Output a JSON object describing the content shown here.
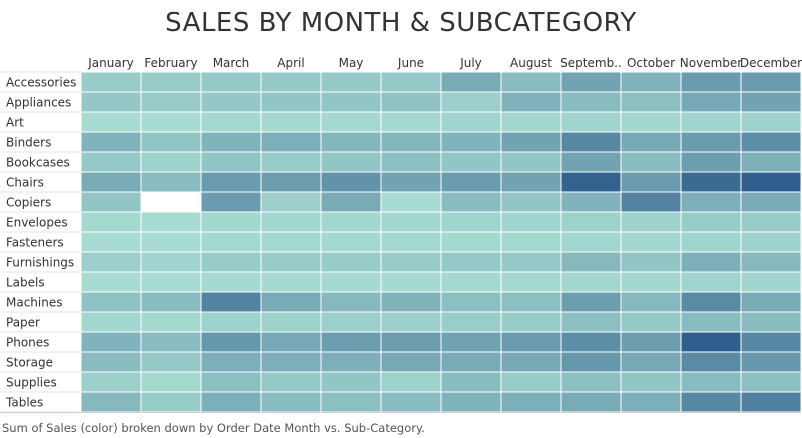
{
  "chart_data": {
    "type": "heatmap",
    "title": "SALES BY MONTH & SUBCATEGORY",
    "caption": "Sum of Sales (color) broken down by Order Date Month vs. Sub-Category.",
    "x_categories": [
      "January",
      "February",
      "March",
      "April",
      "May",
      "June",
      "July",
      "August",
      "Septemb..",
      "October",
      "November",
      "December"
    ],
    "y_categories": [
      "Accessories",
      "Appliances",
      "Art",
      "Binders",
      "Bookcases",
      "Chairs",
      "Copiers",
      "Envelopes",
      "Fasteners",
      "Furnishings",
      "Labels",
      "Machines",
      "Paper",
      "Phones",
      "Storage",
      "Supplies",
      "Tables"
    ],
    "color_scale": {
      "low": "#ffffff",
      "mid": "#a8dcd2",
      "high": "#2b5a8a"
    },
    "values": [
      [
        0.3,
        0.3,
        0.32,
        0.32,
        0.32,
        0.32,
        0.5,
        0.4,
        0.55,
        0.45,
        0.6,
        0.6
      ],
      [
        0.33,
        0.3,
        0.33,
        0.34,
        0.34,
        0.36,
        0.28,
        0.45,
        0.4,
        0.38,
        0.52,
        0.55
      ],
      [
        0.2,
        0.2,
        0.22,
        0.22,
        0.22,
        0.22,
        0.25,
        0.24,
        0.25,
        0.24,
        0.25,
        0.27
      ],
      [
        0.45,
        0.35,
        0.45,
        0.48,
        0.43,
        0.43,
        0.45,
        0.55,
        0.72,
        0.52,
        0.6,
        0.68
      ],
      [
        0.32,
        0.27,
        0.35,
        0.3,
        0.34,
        0.38,
        0.34,
        0.34,
        0.55,
        0.4,
        0.58,
        0.47
      ],
      [
        0.5,
        0.4,
        0.6,
        0.58,
        0.65,
        0.55,
        0.6,
        0.55,
        0.95,
        0.6,
        0.9,
        0.97
      ],
      [
        0.34,
        0.0,
        0.6,
        0.28,
        0.5,
        0.2,
        0.4,
        0.34,
        0.45,
        0.75,
        0.48,
        0.5
      ],
      [
        0.22,
        0.2,
        0.24,
        0.24,
        0.24,
        0.24,
        0.25,
        0.25,
        0.27,
        0.26,
        0.3,
        0.3
      ],
      [
        0.2,
        0.2,
        0.22,
        0.22,
        0.22,
        0.22,
        0.22,
        0.22,
        0.24,
        0.23,
        0.25,
        0.26
      ],
      [
        0.28,
        0.25,
        0.3,
        0.3,
        0.3,
        0.3,
        0.32,
        0.32,
        0.42,
        0.34,
        0.48,
        0.42
      ],
      [
        0.2,
        0.2,
        0.21,
        0.21,
        0.21,
        0.21,
        0.22,
        0.22,
        0.24,
        0.23,
        0.25,
        0.25
      ],
      [
        0.36,
        0.4,
        0.75,
        0.5,
        0.42,
        0.45,
        0.38,
        0.38,
        0.58,
        0.42,
        0.7,
        0.5
      ],
      [
        0.24,
        0.22,
        0.27,
        0.27,
        0.28,
        0.28,
        0.29,
        0.3,
        0.38,
        0.32,
        0.4,
        0.4
      ],
      [
        0.45,
        0.4,
        0.62,
        0.52,
        0.58,
        0.58,
        0.56,
        0.6,
        0.68,
        0.58,
        0.97,
        0.72
      ],
      [
        0.4,
        0.32,
        0.48,
        0.48,
        0.48,
        0.52,
        0.5,
        0.52,
        0.62,
        0.52,
        0.7,
        0.62
      ],
      [
        0.28,
        0.22,
        0.38,
        0.32,
        0.34,
        0.27,
        0.4,
        0.3,
        0.38,
        0.34,
        0.4,
        0.38
      ],
      [
        0.42,
        0.3,
        0.48,
        0.4,
        0.38,
        0.4,
        0.45,
        0.48,
        0.5,
        0.48,
        0.72,
        0.76
      ]
    ]
  }
}
